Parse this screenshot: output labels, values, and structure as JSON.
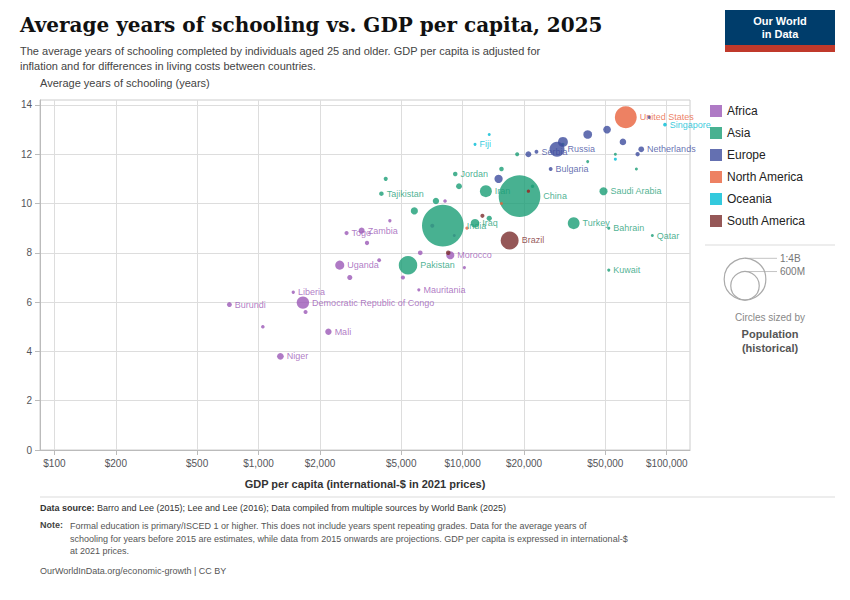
{
  "chart_data": {
    "type": "scatter",
    "title": "Average years of schooling vs. GDP per capita, 2025",
    "subtitle": "The average years of schooling completed by individuals aged 25 and older. GDP per capita is adjusted for\ninflation and for differences in living costs between countries.",
    "xlabel": "GDP per capita (international-$ in 2021 prices)",
    "ylabel": "Average years of schooling (years)",
    "log": "x",
    "grid": true,
    "legend": "right",
    "xlim": [
      85,
      130000
    ],
    "xticks": [
      {
        "value": 100,
        "label": "$100"
      },
      {
        "value": 200,
        "label": "$200"
      },
      {
        "value": 500,
        "label": "$500"
      },
      {
        "value": 1000,
        "label": "$1,000"
      },
      {
        "value": 2000,
        "label": "$2,000"
      },
      {
        "value": 5000,
        "label": "$5,000"
      },
      {
        "value": 10000,
        "label": "$10,000"
      },
      {
        "value": 20000,
        "label": "$20,000"
      },
      {
        "value": 50000,
        "label": "$50,000"
      },
      {
        "value": 100000,
        "label": "$100,000"
      }
    ],
    "ylim": [
      0,
      14.2
    ],
    "yticks": [
      0,
      2,
      4,
      6,
      8,
      10,
      12,
      14
    ],
    "series": [
      {
        "name": "Africa",
        "color": "#9B59B6",
        "x": [
          1050,
          1700,
          2800,
          3400,
          3900,
          4400,
          5100,
          6200,
          7100,
          8200,
          9100,
          10200,
          720,
          1280,
          2200,
          1480,
          1650,
          2700,
          2500,
          3200,
          6100,
          8700
        ],
        "y": [
          5.0,
          5.6,
          7.0,
          8.4,
          7.7,
          9.3,
          7.0,
          8.0,
          9.1,
          10.1,
          8.7,
          7.4,
          5.9,
          3.8,
          4.8,
          6.4,
          5.98,
          8.8,
          7.5,
          8.9,
          6.5,
          7.9
        ],
        "pop": [
          6000000,
          8000000,
          13000000,
          9000000,
          7000000,
          5000000,
          8000000,
          11000000,
          8000000,
          6000000,
          4000000,
          4500000,
          12000000,
          24000000,
          22000000,
          5000000,
          95000000,
          8000000,
          47000000,
          19000000,
          4500000,
          37000000
        ],
        "labels": [
          null,
          null,
          null,
          null,
          null,
          null,
          null,
          null,
          null,
          null,
          null,
          null,
          "Burundi",
          "Niger",
          "Mali",
          "Liberia",
          "Democratic Republic of Congo",
          "Togo",
          "Uganda",
          "Zambia",
          "Mauritania",
          "Morocco"
        ]
      },
      {
        "name": "Asia",
        "color": "#1a9e76",
        "x": [
          4200,
          5800,
          7400,
          9600,
          13500,
          15500,
          18500,
          22000,
          31000,
          41000,
          56000,
          71000,
          5400,
          8000,
          4000,
          9200,
          13000,
          11500,
          19000,
          35000,
          49000,
          52000,
          52000,
          85000
        ],
        "y": [
          11.0,
          9.7,
          10.1,
          10.7,
          9.4,
          11.4,
          12.0,
          10.7,
          12.4,
          11.7,
          12.0,
          11.4,
          7.5,
          9.1,
          10.4,
          11.2,
          10.5,
          9.2,
          10.3,
          9.2,
          10.5,
          9.0,
          7.3,
          8.7
        ],
        "pop": [
          8000000,
          28000000,
          22000000,
          18000000,
          14000000,
          10000000,
          8000000,
          6000000,
          5000000,
          4000000,
          3000000,
          2000000,
          230000000,
          1400000000,
          10000000,
          10000000,
          87000000,
          42000000,
          1400000000,
          85000000,
          36000000,
          1700000,
          4500000,
          2800000
        ],
        "labels": [
          null,
          null,
          null,
          null,
          null,
          null,
          null,
          null,
          null,
          null,
          null,
          null,
          "Pakistan",
          "India",
          "Tajikistan",
          "Jordan",
          "Iran",
          "Iraq",
          "China",
          "Turkey",
          "Saudi Arabia",
          "Bahrain",
          "Kuwait",
          "Qatar"
        ]
      },
      {
        "name": "Europe",
        "color": "#3d4c9e",
        "x": [
          15000,
          21000,
          31000,
          41000,
          51000,
          61000,
          72000,
          82000,
          23000,
          27000,
          29000,
          75000
        ],
        "y": [
          11.0,
          12.0,
          12.5,
          12.8,
          13.0,
          12.5,
          12.0,
          13.5,
          12.1,
          11.4,
          12.2,
          12.2
        ],
        "pop": [
          38000000,
          18000000,
          58000000,
          43000000,
          33000000,
          23000000,
          9000000,
          5000000,
          7000000,
          7000000,
          145000000,
          17000000
        ],
        "labels": [
          null,
          null,
          null,
          null,
          null,
          null,
          null,
          null,
          "Serbia",
          "Bulgaria",
          "Russia",
          "Netherlands"
        ]
      },
      {
        "name": "North America",
        "color": "#e8613c",
        "x": [
          10500,
          15500,
          21000,
          63000
        ],
        "y": [
          9.0,
          10.0,
          10.5,
          13.5
        ],
        "pop": [
          5000000,
          4000000,
          3000000,
          335000000
        ],
        "labels": [
          null,
          null,
          null,
          "United States"
        ]
      },
      {
        "name": "Oceania",
        "color": "#00bcd4",
        "x": [
          13500,
          56000,
          11500,
          98000
        ],
        "y": [
          12.8,
          11.8,
          12.4,
          13.2
        ],
        "pop": [
          800000,
          1200000,
          900000,
          6000000
        ],
        "labels": [
          null,
          null,
          "Fiji",
          "Singapore"
        ]
      },
      {
        "name": "South America",
        "color": "#7b2d2d",
        "x": [
          8500,
          12500,
          21000,
          17000
        ],
        "y": [
          8.0,
          9.5,
          10.5,
          8.5
        ],
        "pop": [
          10000000,
          8000000,
          5000000,
          215000000
        ],
        "labels": [
          null,
          null,
          null,
          "Brazil"
        ]
      }
    ],
    "size_legend": {
      "title": "Circles sized by",
      "variable": "Population\n(historical)",
      "entries": [
        {
          "value": 1400000000,
          "label": "1:4B"
        },
        {
          "value": 600000000,
          "label": "600M"
        }
      ]
    },
    "logo": {
      "texts": [
        "Our World",
        "in Data"
      ],
      "color": "#003d6b",
      "accent": "#c0392b"
    },
    "source_label": "Data source:",
    "source": "Barro and Lee (2015); Lee and Lee (2016); Data compiled from multiple sources by World Bank (2025)",
    "note_label": "Note:",
    "note": "Formal education is primary/ISCED 1 or higher. This does not include years spent repeating grades. Data for the average years of\nschooling for years before 2015 are estimates, while data from 2015 onwards are projections. GDP per capita is expressed in international-$\nat 2021 prices.",
    "footer": "OurWorldInData.org/economic-growth | CC BY"
  }
}
